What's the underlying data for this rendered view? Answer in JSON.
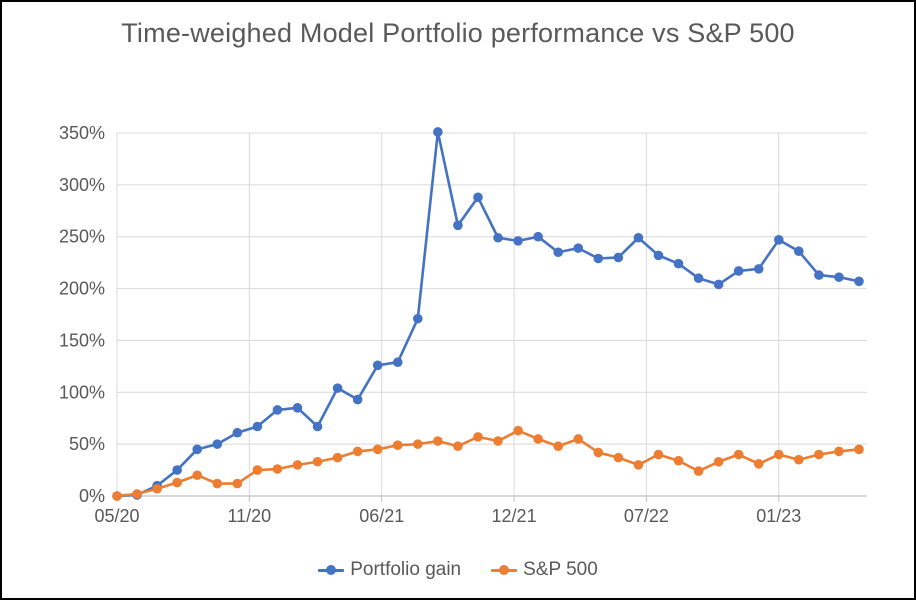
{
  "chart_data": {
    "type": "line",
    "title": "Time-weighed Model Portfolio performance vs S&P 500",
    "xlabel": "",
    "ylabel": "",
    "ylim": [
      0,
      350
    ],
    "y_major_step_pct": 50,
    "grid": true,
    "legend_position": "bottom",
    "grid_color": "#D9D9D9",
    "axis_color": "#BFBFBF",
    "text_color": "#595959",
    "background_color": "#FFFFFF",
    "y_ticks": [
      {
        "label": "0%",
        "value": 0
      },
      {
        "label": "50%",
        "value": 50
      },
      {
        "label": "100%",
        "value": 100
      },
      {
        "label": "150%",
        "value": 150
      },
      {
        "label": "200%",
        "value": 200
      },
      {
        "label": "250%",
        "value": 250
      },
      {
        "label": "300%",
        "value": 300
      },
      {
        "label": "350%",
        "value": 350
      }
    ],
    "x_ticks": [
      {
        "label": "05/20",
        "index": 0
      },
      {
        "label": "11/20",
        "index": 6.6
      },
      {
        "label": "06/21",
        "index": 13.2
      },
      {
        "label": "12/21",
        "index": 19.8
      },
      {
        "label": "07/22",
        "index": 26.4
      },
      {
        "label": "01/23",
        "index": 33.0
      }
    ],
    "series": [
      {
        "name": "Portfolio gain",
        "color": "#4472C4",
        "marker": "circle",
        "values_pct": [
          0,
          1,
          10,
          25,
          45,
          50,
          61,
          67,
          83,
          85,
          67,
          104,
          93,
          126,
          129,
          171,
          351,
          261,
          288,
          249,
          246,
          250,
          235,
          239,
          229,
          230,
          249,
          232,
          224,
          210,
          204,
          217,
          219,
          247,
          236,
          213,
          211,
          207
        ]
      },
      {
        "name": "S&P 500",
        "color": "#ED7D31",
        "marker": "circle",
        "values_pct": [
          0,
          2,
          7,
          13,
          20,
          12,
          12,
          25,
          26,
          30,
          33,
          37,
          43,
          45,
          49,
          50,
          53,
          48,
          57,
          53,
          63,
          55,
          48,
          55,
          42,
          37,
          30,
          40,
          34,
          24,
          33,
          40,
          31,
          40,
          35,
          40,
          43,
          45
        ]
      }
    ]
  }
}
